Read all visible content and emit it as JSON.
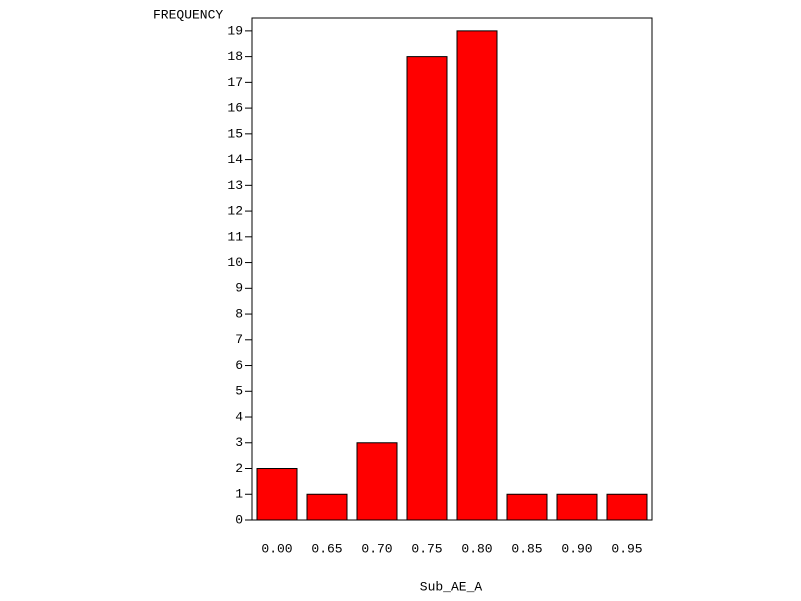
{
  "chart_data": {
    "type": "bar",
    "y_label": "FREQUENCY",
    "x_label": "Sub_AE_A",
    "categories": [
      "0.00",
      "0.65",
      "0.70",
      "0.75",
      "0.80",
      "0.85",
      "0.90",
      "0.95"
    ],
    "values": [
      2,
      1,
      3,
      18,
      19,
      1,
      1,
      1
    ],
    "color": "#ff0000",
    "ylim": [
      0,
      19.5
    ],
    "yticks": [
      0,
      1,
      2,
      3,
      4,
      5,
      6,
      7,
      8,
      9,
      10,
      11,
      12,
      13,
      14,
      15,
      16,
      17,
      18,
      19
    ],
    "grid": false
  }
}
